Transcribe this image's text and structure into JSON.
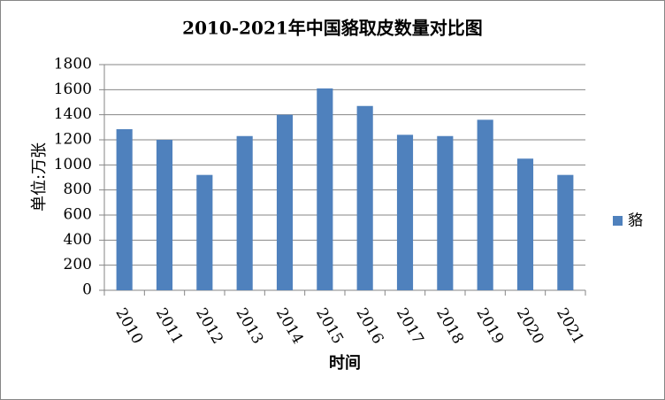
{
  "chart_data": {
    "type": "bar",
    "title": "2010-2021年中国貉取皮数量对比图",
    "x_label": "时间",
    "y_label": "单位:万张",
    "categories": [
      "2010",
      "2011",
      "2012",
      "2013",
      "2014",
      "2015",
      "2016",
      "2017",
      "2018",
      "2019",
      "2020",
      "2021"
    ],
    "series": [
      {
        "name": "貉",
        "color": "#4f81bd",
        "values": [
          1285,
          1200,
          920,
          1230,
          1400,
          1610,
          1470,
          1240,
          1230,
          1360,
          1050,
          920
        ]
      }
    ],
    "ylim": [
      0,
      1800
    ],
    "yticks": [
      0,
      200,
      400,
      600,
      800,
      1000,
      1200,
      1400,
      1600,
      1800
    ],
    "grid": true,
    "legend": "right"
  }
}
